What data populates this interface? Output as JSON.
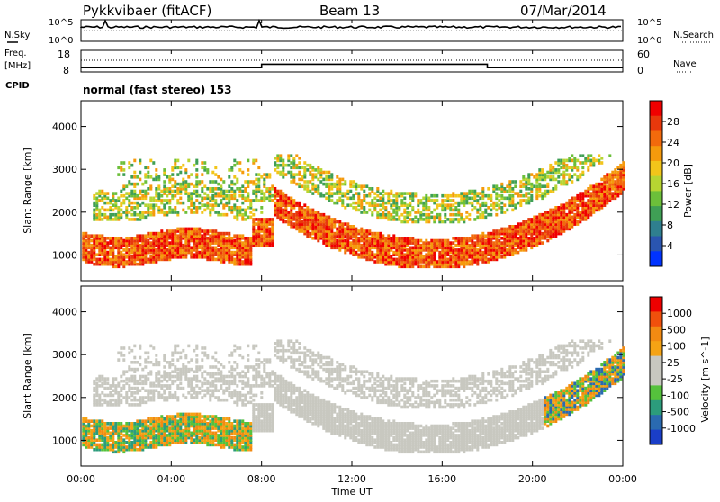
{
  "header": {
    "radar": "Pykkvibaer (fitACF)",
    "beam": "Beam 13",
    "date": "07/Mar/2014"
  },
  "top_panels": {
    "nsky_label": "N.Sky",
    "nsearch_label": "N.Search",
    "noise_left_ticks": [
      "10^5",
      "10^0"
    ],
    "noise_right_ticks": [
      "10^5",
      "10^0"
    ],
    "freq_label": "Freq.",
    "freq_unit": "[MHz]",
    "freq_ticks": [
      "18",
      "8"
    ],
    "nave_ticks": [
      "60",
      "0"
    ],
    "nave_label": "Nave",
    "cpid_label": "CPID",
    "cpid_value": "normal (fast stereo) 153"
  },
  "colors": {
    "power_scale": [
      "#0033ff",
      "#2a55b0",
      "#2f7f8f",
      "#3f9f55",
      "#6cbf3a",
      "#b7d532",
      "#f2c51a",
      "#f59a0c",
      "#f26a0c",
      "#e8380c",
      "#f00000"
    ],
    "velocity_scale": [
      "#1a3ec8",
      "#2a6ab0",
      "#2c9c7c",
      "#55c23c",
      "#c8c8c0",
      "#c8c8c0",
      "#f5a314",
      "#f28a12",
      "#f0500c",
      "#ee0000"
    ]
  },
  "chart_data": [
    {
      "type": "heatmap",
      "name": "power",
      "ylabel": "Slant Range [km]",
      "yticks": [
        1000,
        2000,
        3000,
        4000
      ],
      "ylim": [
        400,
        4600
      ],
      "xlabel": "Time UT",
      "xticks": [
        "00:00",
        "04:00",
        "08:00",
        "12:00",
        "16:00",
        "20:00",
        "00:00"
      ],
      "xlim_hours": [
        0,
        24
      ],
      "colorbar_label": "Power [dB]",
      "colorbar_ticks": [
        "28",
        "24",
        "20",
        "16",
        "12",
        "8",
        "4"
      ],
      "colorbar_range": [
        0,
        30
      ]
    },
    {
      "type": "heatmap",
      "name": "velocity",
      "ylabel": "Slant Range [km]",
      "yticks": [
        1000,
        2000,
        3000,
        4000
      ],
      "ylim": [
        400,
        4600
      ],
      "xlabel": "Time UT",
      "xticks": [
        "00:00",
        "04:00",
        "08:00",
        "12:00",
        "16:00",
        "20:00",
        "00:00"
      ],
      "xlim_hours": [
        0,
        24
      ],
      "colorbar_label": "Velocity [m s^-1]",
      "colorbar_ticks": [
        "1000",
        "500",
        "100",
        "25",
        "-25",
        "-100",
        "-500",
        "-1000"
      ]
    },
    {
      "type": "line",
      "name": "frequency",
      "ylabel": "Freq. [MHz]",
      "ylim": [
        8,
        18
      ],
      "segments": [
        {
          "x_hours": [
            0,
            8.0
          ],
          "y_mhz": 10.0
        },
        {
          "x_hours": [
            8.0,
            18.0
          ],
          "y_mhz": 11.6
        },
        {
          "x_hours": [
            18.0,
            24.0
          ],
          "y_mhz": 10.0
        }
      ]
    }
  ]
}
